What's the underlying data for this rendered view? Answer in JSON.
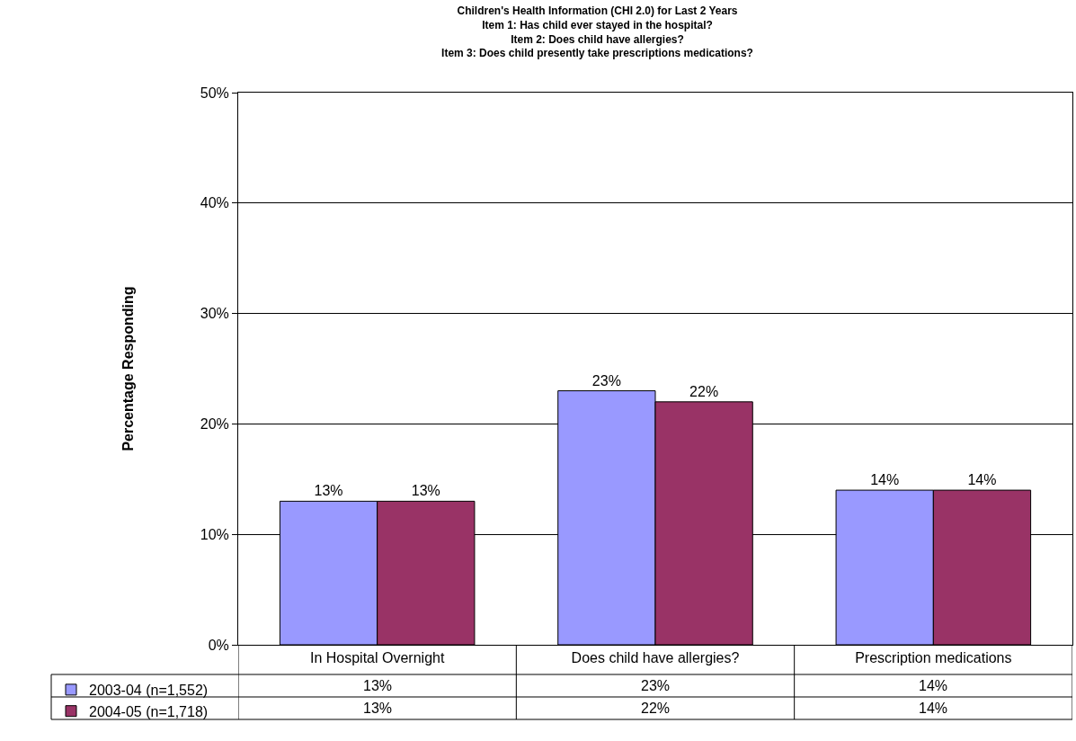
{
  "chart_data": {
    "type": "bar",
    "title": "Children's Health Information (CHI 2.0) for Last 2 Years\nItem 1: Has child ever stayed in the hospital?\nItem 2: Does child have allergies?\nItem 3: Does child presently take prescriptions medications?",
    "ylabel": "Percentage Responding",
    "categories": [
      "In Hospital Overnight",
      "Does child have allergies?",
      "Prescription medications"
    ],
    "series": [
      {
        "name": "2003-04 (n=1,552)",
        "color": "#9999ff",
        "values": [
          13,
          23,
          14
        ],
        "value_labels": [
          "13%",
          "23%",
          "14%"
        ]
      },
      {
        "name": "2004-05 (n=1,718)",
        "color": "#993366",
        "values": [
          13,
          22,
          14
        ],
        "value_labels": [
          "13%",
          "22%",
          "14%"
        ]
      }
    ],
    "ylim": [
      0,
      50
    ],
    "yticks": [
      {
        "value": 0,
        "label": "0%"
      },
      {
        "value": 10,
        "label": "10%"
      },
      {
        "value": 20,
        "label": "20%"
      },
      {
        "value": 30,
        "label": "30%"
      },
      {
        "value": 40,
        "label": "40%"
      },
      {
        "value": 50,
        "label": "50%"
      }
    ],
    "grid": "y",
    "legend": "bottom left"
  }
}
